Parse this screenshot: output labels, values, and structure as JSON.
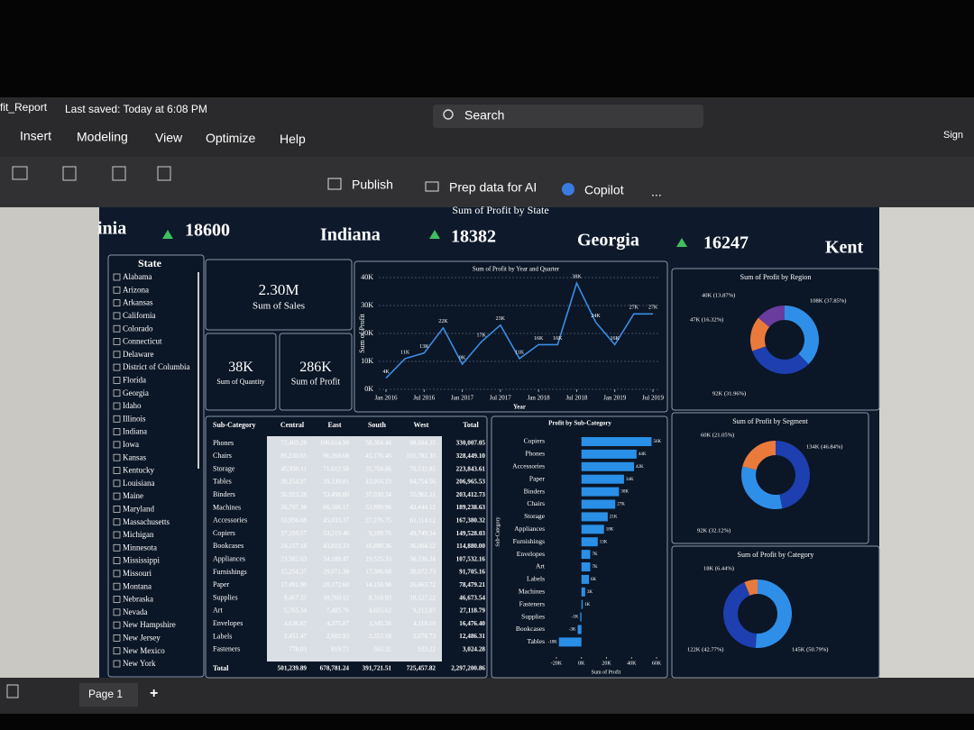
{
  "header": {
    "file": "fit_Report",
    "saved": "Last saved: Today at 6:08 PM",
    "search": "Search",
    "sign": "Sign"
  },
  "menu": [
    "Insert",
    "Modeling",
    "View",
    "Optimize",
    "Help"
  ],
  "toolbar": [
    "Publish",
    "Prep data for AI",
    "Copilot",
    "..."
  ],
  "report_title": "Sum of Profit by State",
  "ticker": [
    {
      "name": "inia",
      "value": "18600"
    },
    {
      "name": "Indiana",
      "value": "18382"
    },
    {
      "name": "Georgia",
      "value": "16247"
    },
    {
      "name": "Kent"
    }
  ],
  "slicer": {
    "title": "State",
    "items": [
      "Alabama",
      "Arizona",
      "Arkansas",
      "California",
      "Colorado",
      "Connecticut",
      "Delaware",
      "District of Columbia",
      "Florida",
      "Georgia",
      "Idaho",
      "Illinois",
      "Indiana",
      "Iowa",
      "Kansas",
      "Kentucky",
      "Louisiana",
      "Maine",
      "Maryland",
      "Massachusetts",
      "Michigan",
      "Minnesota",
      "Mississippi",
      "Missouri",
      "Montana",
      "Nebraska",
      "Nevada",
      "New Hampshire",
      "New Jersey",
      "New Mexico",
      "New York"
    ]
  },
  "cards": [
    {
      "value": "2.30M",
      "label": "Sum of Sales"
    },
    {
      "value": "38K",
      "label": "Sum of Quantity"
    },
    {
      "value": "286K",
      "label": "Sum of Profit"
    }
  ],
  "line_chart": {
    "type": "line",
    "title": "Sum of Profit by Year and Quarter",
    "x_label": "Year",
    "y_label": "Sum of Profit",
    "color": "#3a8ee6",
    "x": [
      "2016-01",
      "2016-04",
      "2016-07",
      "2016-10",
      "2017-01",
      "2017-04",
      "2017-07",
      "2017-10",
      "2018-01",
      "2018-04",
      "2018-07",
      "2018-10",
      "2019-01",
      "2019-04",
      "2019-07"
    ],
    "values": [
      4,
      11,
      13,
      22,
      9,
      17,
      23,
      11,
      16,
      16,
      38,
      24,
      16,
      27,
      27
    ],
    "value_labels": [
      "4K",
      "11K",
      "13K",
      "22K",
      "9K",
      "17K",
      "23K",
      "11K",
      "16K",
      "16K",
      "38K",
      "24K",
      "16K",
      "27K",
      "27K"
    ],
    "ylim": [
      0,
      40
    ],
    "yticks": [
      {
        "value": 0,
        "label": "0K"
      },
      {
        "value": 10,
        "label": "10K"
      },
      {
        "value": 20,
        "label": "20K"
      },
      {
        "value": 30,
        "label": "30K"
      },
      {
        "value": 40,
        "label": "40K"
      }
    ],
    "xticks": [
      {
        "value": "2016-01",
        "label": "Jan 2016"
      },
      {
        "value": "2016-07",
        "label": "Jul 2016"
      },
      {
        "value": "2017-01",
        "label": "Jan 2017"
      },
      {
        "value": "2017-07",
        "label": "Jul 2017"
      },
      {
        "value": "2018-01",
        "label": "Jan 2018"
      },
      {
        "value": "2018-07",
        "label": "Jul 2018"
      },
      {
        "value": "2019-01",
        "label": "Jan 2019"
      },
      {
        "value": "2019-07",
        "label": "Jul 2019"
      }
    ],
    "grid": true
  },
  "table": {
    "columns": [
      "Sub-Category",
      "Central",
      "East",
      "South",
      "West",
      "Total"
    ],
    "rows": [
      [
        "Phones",
        "72,403.28",
        "100,614.98",
        "58,304.44",
        "98,684.35",
        "330,007.05"
      ],
      [
        "Chairs",
        "85,230.65",
        "96,260.68",
        "45,176.45",
        "101,781.33",
        "328,449.10"
      ],
      [
        "Storage",
        "45,930.11",
        "71,612.58",
        "35,768.06",
        "70,532.85",
        "223,843.61"
      ],
      [
        "Tables",
        "39,154.97",
        "39,139.81",
        "43,916.19",
        "84,754.56",
        "206,965.53"
      ],
      [
        "Binders",
        "56,923.28",
        "53,498.00",
        "37,030.34",
        "55,961.11",
        "203,412.73"
      ],
      [
        "Machines",
        "26,797.38",
        "66,106.17",
        "53,890.96",
        "42,444.12",
        "189,238.63"
      ],
      [
        "Accessories",
        "33,956.08",
        "45,033.37",
        "27,276.75",
        "61,114.12",
        "167,380.32"
      ],
      [
        "Copiers",
        "37,259.57",
        "53,219.46",
        "9,299.76",
        "49,749.24",
        "149,528.03"
      ],
      [
        "Bookcases",
        "24,157.18",
        "43,819.33",
        "10,899.36",
        "36,004.12",
        "114,880.00"
      ],
      [
        "Appliances",
        "23,582.03",
        "34,188.47",
        "19,525.33",
        "30,236.34",
        "107,532.16"
      ],
      [
        "Furnishings",
        "15,254.37",
        "29,071.38",
        "17,306.68",
        "30,072.73",
        "91,705.16"
      ],
      [
        "Paper",
        "17,491.90",
        "20,172.60",
        "14,150.98",
        "26,663.72",
        "78,479.21"
      ],
      [
        "Supplies",
        "9,467.37",
        "10,760.12",
        "8,318.93",
        "18,127.12",
        "46,673.54"
      ],
      [
        "Art",
        "5,765.34",
        "7,485.76",
        "4,655.62",
        "9,212.07",
        "27,118.79"
      ],
      [
        "Envelopes",
        "4,636.87",
        "4,375.87",
        "3,345.56",
        "4,118.10",
        "16,476.40"
      ],
      [
        "Labels",
        "2,451.47",
        "2,602.93",
        "2,353.18",
        "5,078.73",
        "12,486.31"
      ],
      [
        "Fasteners",
        "778.03",
        "819.72",
        "503.32",
        "923.22",
        "3,024.28"
      ]
    ],
    "total": [
      "Total",
      "501,239.89",
      "678,781.24",
      "391,721.51",
      "725,457.82",
      "2,297,200.86"
    ]
  },
  "bar_chart": {
    "type": "bar",
    "orientation": "horizontal",
    "title": "Profit by Sub-Category",
    "x_label": "Sum of Profit",
    "y_label": "Sub-Category",
    "color": "#2a8fe6",
    "categories": [
      "Copiers",
      "Phones",
      "Accessories",
      "Paper",
      "Binders",
      "Chairs",
      "Storage",
      "Appliances",
      "Furnishings",
      "Envelopes",
      "Art",
      "Labels",
      "Machines",
      "Fasteners",
      "Supplies",
      "Bookcases",
      "Tables"
    ],
    "values": [
      56,
      44,
      42,
      34,
      30,
      27,
      21,
      18,
      13,
      7,
      7,
      6,
      3,
      1,
      -1,
      -3,
      -18
    ],
    "value_labels": [
      "56K",
      "44K",
      "42K",
      "34K",
      "30K",
      "27K",
      "21K",
      "18K",
      "13K",
      "7K",
      "7K",
      "6K",
      "3K",
      "1K",
      "-1K",
      "-3K",
      "-18K"
    ],
    "xlim": [
      -25,
      65
    ],
    "xticks": [
      {
        "value": -20,
        "label": "-20K"
      },
      {
        "value": 0,
        "label": "0K"
      },
      {
        "value": 20,
        "label": "20K"
      },
      {
        "value": 40,
        "label": "40K"
      },
      {
        "value": 60,
        "label": "60K"
      }
    ]
  },
  "donuts": [
    {
      "type": "donut",
      "title": "Sum of Profit by Region",
      "values": [
        108,
        92,
        47,
        40
      ],
      "value_labels": [
        "108K (37.85%)",
        "92K (31.96%)",
        "47K (16.32%)",
        "40K (13.87%)"
      ],
      "colors": [
        "#2f8fe8",
        "#1d3fb0",
        "#ea7a3c",
        "#6a3c9e"
      ]
    },
    {
      "type": "donut",
      "title": "Sum of Profit by Segment",
      "values": [
        134,
        92,
        60
      ],
      "value_labels": [
        "134K (46.84%)",
        "92K (32.12%)",
        "60K (21.05%)"
      ],
      "colors": [
        "#1d3fb0",
        "#2f8fe8",
        "#ea7a3c"
      ]
    },
    {
      "type": "donut",
      "title": "Sum of Profit by Category",
      "values": [
        145,
        122,
        18
      ],
      "value_labels": [
        "145K (50.79%)",
        "122K (42.77%)",
        "18K (6.44%)"
      ],
      "colors": [
        "#2f8fe8",
        "#1d3fb0",
        "#ea7a3c"
      ]
    }
  ],
  "footer": {
    "page": "Page 1",
    "add": "+"
  }
}
